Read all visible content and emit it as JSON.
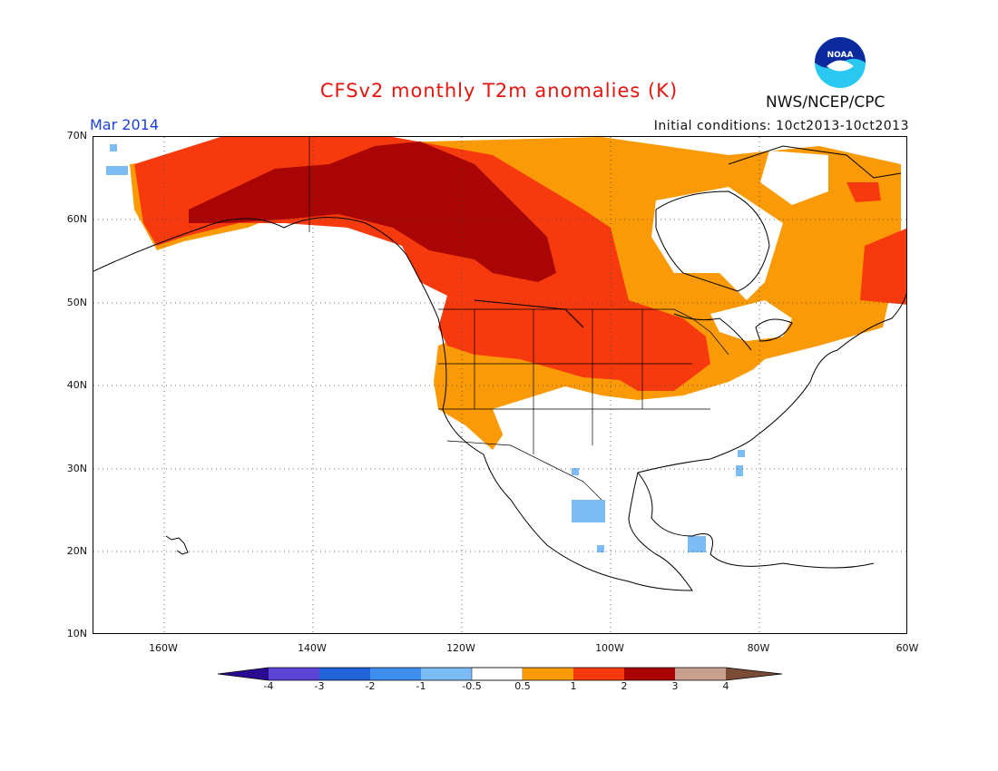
{
  "header": {
    "title": "CFSv2 monthly T2m anomalies (K)",
    "month": "Mar 2014",
    "initial_conditions": "Initial conditions: 10ct2013-10ct2013",
    "agency": "NWS/NCEP/CPC",
    "logo_text": "NOAA"
  },
  "axes": {
    "lat_labels": [
      "70N",
      "60N",
      "50N",
      "40N",
      "30N",
      "20N",
      "10N"
    ],
    "lon_labels": [
      "160W",
      "140W",
      "120W",
      "100W",
      "80W",
      "60W"
    ],
    "lat_range": [
      10,
      70
    ],
    "lon_range": [
      -170,
      -60
    ]
  },
  "colorbar": {
    "labels": [
      "-4",
      "-3",
      "-2",
      "-1",
      "-0.5",
      "0.5",
      "1",
      "2",
      "3",
      "4"
    ],
    "colors": [
      "#2a0a91",
      "#5b44d6",
      "#1f64d8",
      "#3e8fec",
      "#7cbcf6",
      "#ffffff",
      "#fa9a06",
      "#f73a0e",
      "#a80504",
      "#c9a08e",
      "#7a4c36"
    ]
  },
  "chart_data": {
    "type": "heatmap",
    "title": "CFSv2 monthly T2m anomalies (K)",
    "units": "K",
    "period": "Mar 2014",
    "regions": [
      {
        "name": "Interior Alaska / Yukon / NW Territories / Alberta",
        "anomaly_range": "2 to 3"
      },
      {
        "name": "Alaska coast / British Columbia / Saskatchewan / US northern plains",
        "anomaly_range": "1 to 2"
      },
      {
        "name": "Northern Quebec / Hudson Bay area / Ontario / US west and central",
        "anomaly_range": "0.5 to 1"
      },
      {
        "name": "Newfoundland / Labrador coast",
        "anomaly_range": "1 to 2"
      },
      {
        "name": "Southern US / Mexico / Central America",
        "anomaly_range": "-0.5 to 0.5"
      },
      {
        "name": "Central Mexico / Florida / Yucatan patches",
        "anomaly_range": "-1 to -0.5"
      }
    ]
  }
}
